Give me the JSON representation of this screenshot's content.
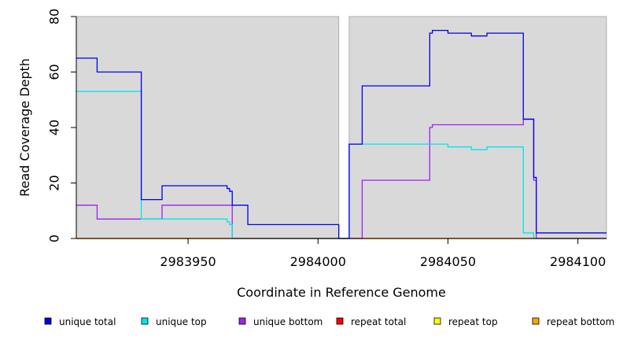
{
  "chart_data": {
    "type": "line",
    "step": true,
    "xlabel": "Coordinate in Reference Genome",
    "ylabel": "Read Coverage Depth",
    "xlim": [
      2983907,
      2984111
    ],
    "ylim": [
      0,
      80
    ],
    "xticks": [
      2983950,
      2984000,
      2984050,
      2984100
    ],
    "xtick_labels": [
      "2983950",
      "2984000",
      "2984050",
      "2984100"
    ],
    "yticks": [
      0,
      20,
      40,
      60,
      80
    ],
    "ytick_labels": [
      "0",
      "20",
      "40",
      "60",
      "80"
    ],
    "background_color": "#d9d9d9",
    "shaded_ranges": [
      [
        2983907,
        2984008
      ],
      [
        2984012,
        2984111
      ]
    ],
    "legend_position": "bottom",
    "series": [
      {
        "name": "repeat bottom",
        "color": "#ffa500",
        "points": [
          [
            2983907,
            0
          ],
          [
            2984111,
            0
          ]
        ]
      },
      {
        "name": "repeat top",
        "color": "#ffff00",
        "points": [
          [
            2983907,
            0
          ],
          [
            2984111,
            0
          ]
        ]
      },
      {
        "name": "repeat total",
        "color": "#ff0000",
        "points": [
          [
            2983907,
            0
          ],
          [
            2984111,
            0
          ]
        ]
      },
      {
        "name": "unique bottom",
        "color": "#a020f0",
        "points": [
          [
            2983907,
            12
          ],
          [
            2983915,
            12
          ],
          [
            2983915,
            7
          ],
          [
            2983940,
            7
          ],
          [
            2983940,
            12
          ],
          [
            2983967,
            12
          ],
          [
            2983967,
            0
          ],
          [
            2984017,
            0
          ],
          [
            2984017,
            21
          ],
          [
            2984043,
            21
          ],
          [
            2984043,
            40
          ],
          [
            2984044,
            40
          ],
          [
            2984044,
            41
          ],
          [
            2984079,
            41
          ],
          [
            2984079,
            43
          ],
          [
            2984083,
            43
          ],
          [
            2984083,
            21
          ],
          [
            2984084,
            21
          ],
          [
            2984084,
            0
          ],
          [
            2984111,
            0
          ]
        ]
      },
      {
        "name": "unique top",
        "color": "#00e5ee",
        "points": [
          [
            2983907,
            53
          ],
          [
            2983932,
            53
          ],
          [
            2983932,
            7
          ],
          [
            2983965,
            7
          ],
          [
            2983965,
            6
          ],
          [
            2983966,
            6
          ],
          [
            2983966,
            5
          ],
          [
            2983967,
            5
          ],
          [
            2983967,
            0
          ],
          [
            2984012,
            0
          ],
          [
            2984012,
            34
          ],
          [
            2984050,
            34
          ],
          [
            2984050,
            33
          ],
          [
            2984059,
            33
          ],
          [
            2984059,
            32
          ],
          [
            2984065,
            32
          ],
          [
            2984065,
            33
          ],
          [
            2984079,
            33
          ],
          [
            2984079,
            2
          ],
          [
            2984083,
            2
          ],
          [
            2984083,
            0
          ],
          [
            2984111,
            0
          ]
        ]
      },
      {
        "name": "unique total",
        "color": "#0000ee",
        "points": [
          [
            2983907,
            65
          ],
          [
            2983915,
            65
          ],
          [
            2983915,
            60
          ],
          [
            2983932,
            60
          ],
          [
            2983932,
            14
          ],
          [
            2983940,
            14
          ],
          [
            2983940,
            19
          ],
          [
            2983965,
            19
          ],
          [
            2983965,
            18
          ],
          [
            2983966,
            18
          ],
          [
            2983966,
            17
          ],
          [
            2983967,
            17
          ],
          [
            2983967,
            12
          ],
          [
            2983973,
            12
          ],
          [
            2983973,
            5
          ],
          [
            2984008,
            5
          ],
          [
            2984008,
            0
          ],
          [
            2984012,
            0
          ],
          [
            2984012,
            34
          ],
          [
            2984017,
            34
          ],
          [
            2984017,
            55
          ],
          [
            2984043,
            55
          ],
          [
            2984043,
            74
          ],
          [
            2984044,
            74
          ],
          [
            2984044,
            75
          ],
          [
            2984050,
            75
          ],
          [
            2984050,
            74
          ],
          [
            2984059,
            74
          ],
          [
            2984059,
            73
          ],
          [
            2984065,
            73
          ],
          [
            2984065,
            74
          ],
          [
            2984079,
            74
          ],
          [
            2984079,
            43
          ],
          [
            2984083,
            43
          ],
          [
            2984083,
            22
          ],
          [
            2984084,
            22
          ],
          [
            2984084,
            2
          ],
          [
            2984111,
            2
          ]
        ]
      }
    ],
    "legend": [
      {
        "name": "unique total",
        "color": "#0000ee"
      },
      {
        "name": "unique top",
        "color": "#00e5ee"
      },
      {
        "name": "unique bottom",
        "color": "#a020f0"
      },
      {
        "name": "repeat total",
        "color": "#ff0000"
      },
      {
        "name": "repeat top",
        "color": "#ffff00"
      },
      {
        "name": "repeat bottom",
        "color": "#ffa500"
      }
    ]
  }
}
